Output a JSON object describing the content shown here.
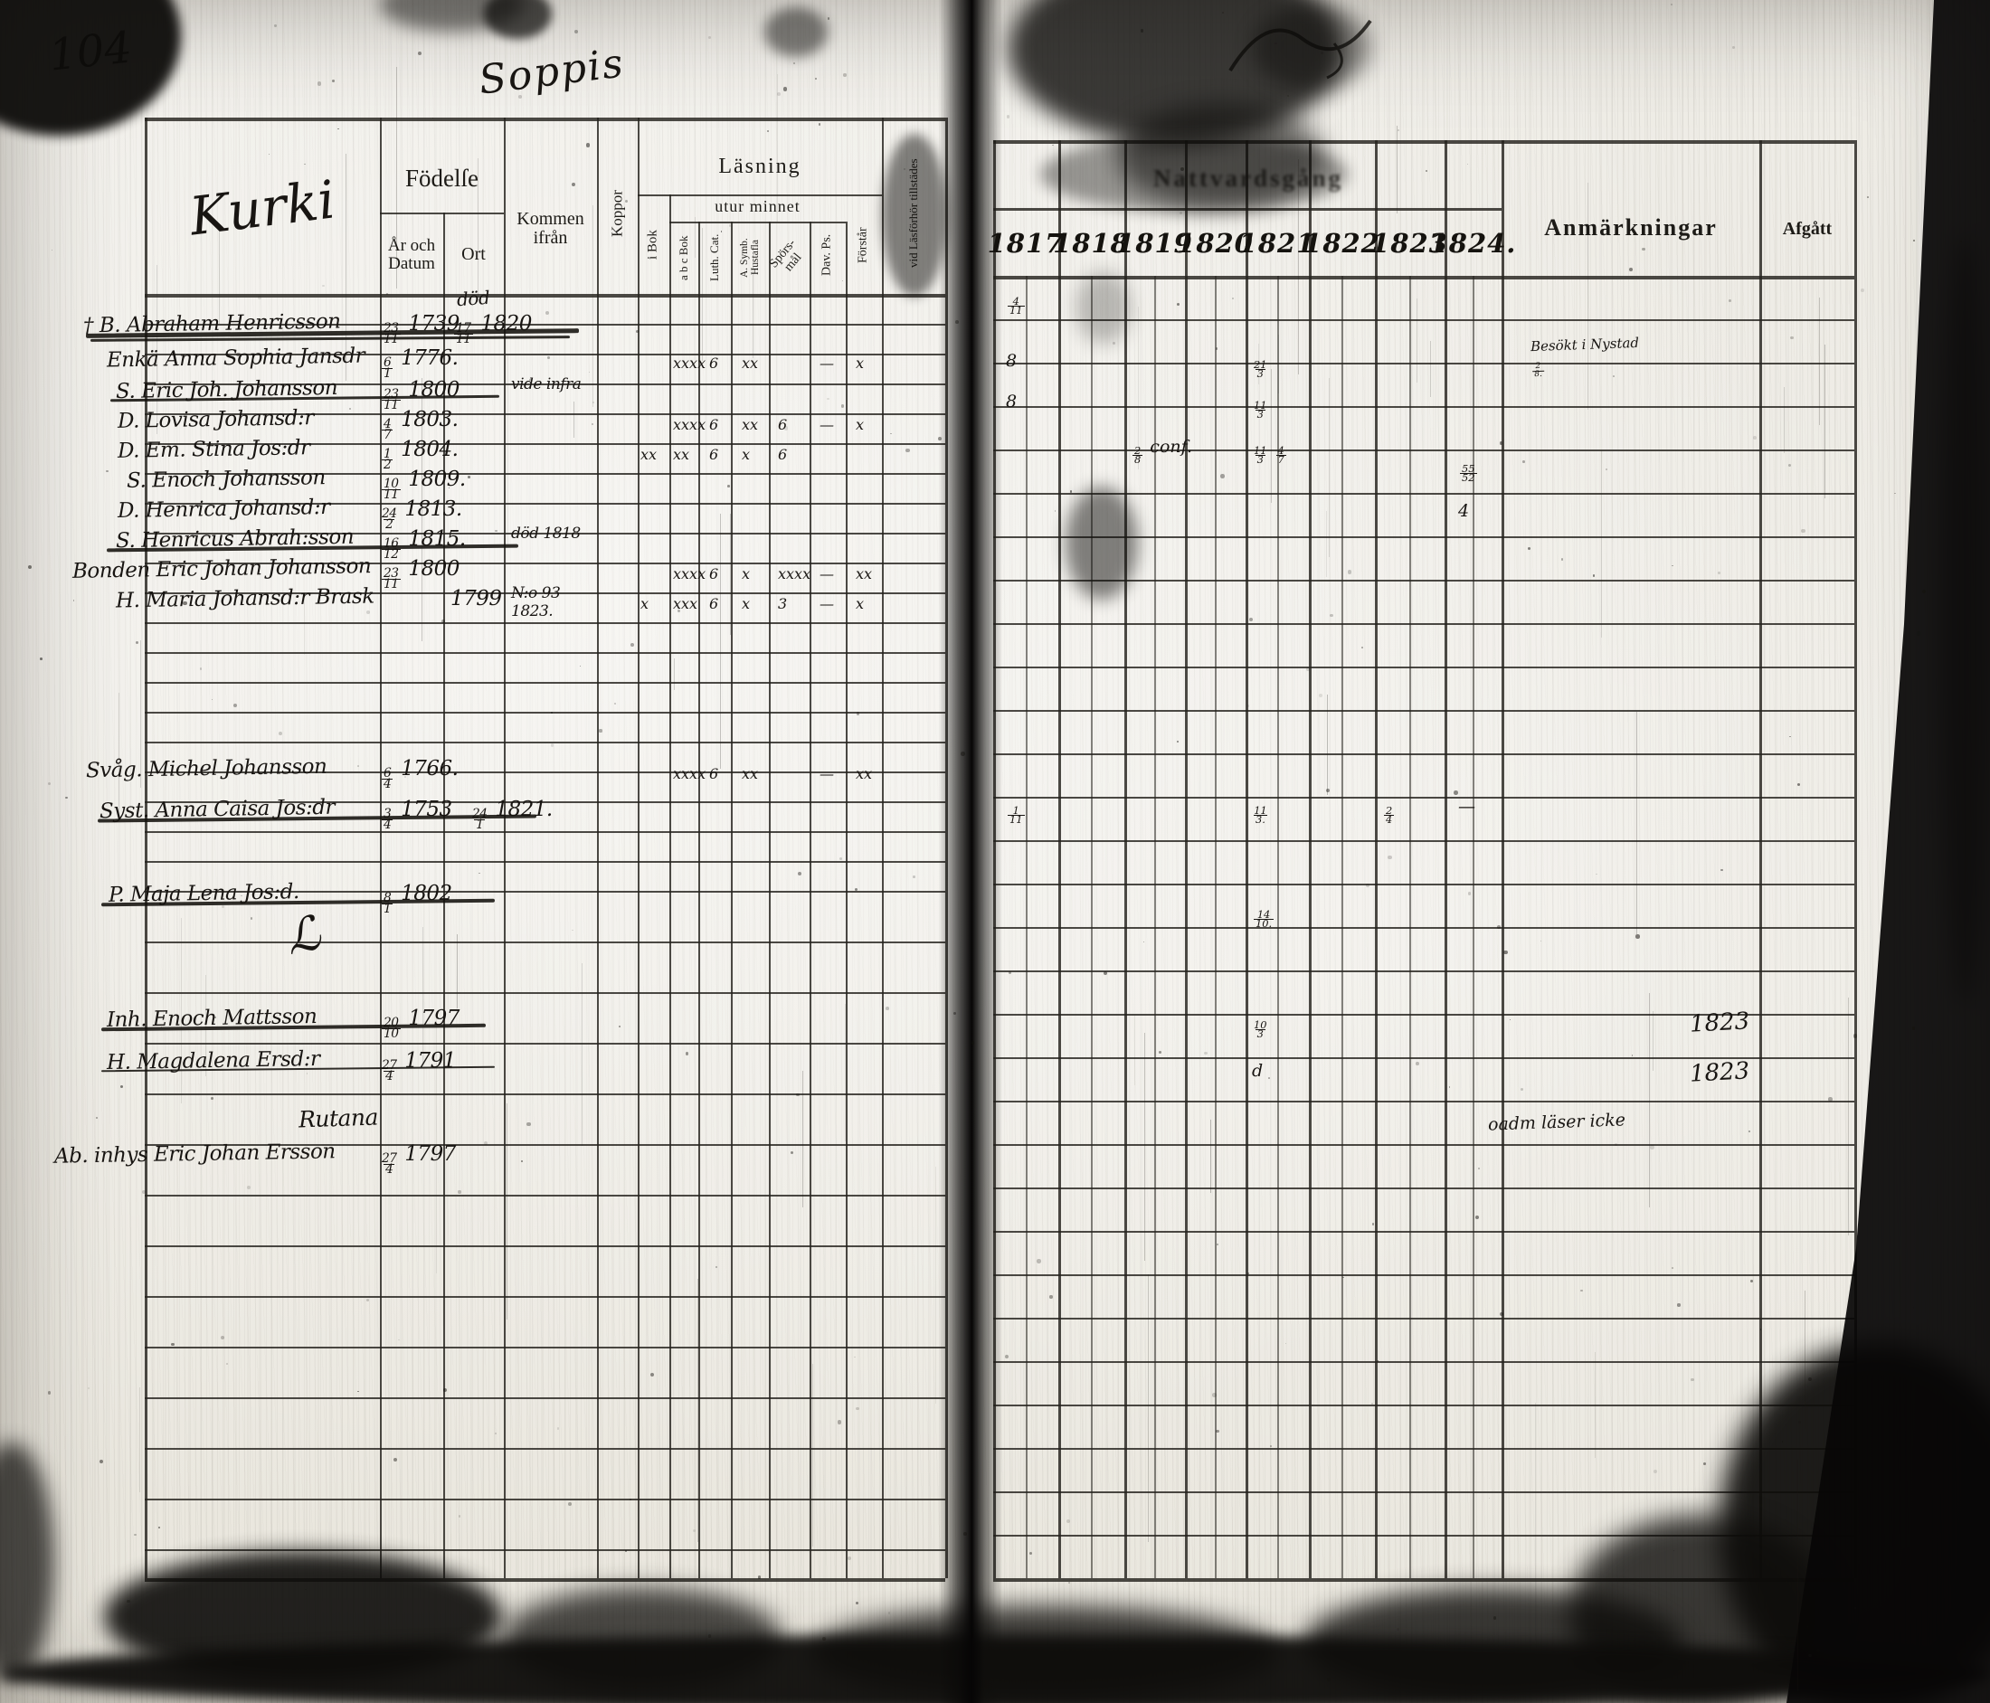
{
  "page": {
    "number": "104",
    "top_note": "Soppis",
    "village": "Kurki"
  },
  "left_table": {
    "headers": {
      "fodelse": "Födelſe",
      "ar_och_datum": "År och Datum",
      "ort": "Ort",
      "kommen_ifran": "Kommen ifrån",
      "koppor": "Koppor",
      "lasning": "Läsning",
      "utur_minnet": "utur minnet",
      "i_bok": "i Bok",
      "abc_bok": "a b c Bok",
      "luth_cat": "Luth. Cat.",
      "symb": "A. Symb. Hustafla",
      "sporsmal": "Spörs-mål",
      "dav_ps": "Dav. Ps.",
      "forstar": "Förstår",
      "tillstades": "vid Läsförhör tillstädes"
    }
  },
  "right_table": {
    "title": "Nattvardsgång",
    "years": [
      "1817",
      "1818",
      "1819",
      "1820",
      "1821",
      "1822",
      "1823",
      "1824."
    ],
    "anmarkningar": "Anmärkningar",
    "afgatt": "Afgått"
  },
  "entries": [
    {
      "name": "† B. Abraham Henricsson",
      "birth": "23/11 1739",
      "death": "17/11 1820",
      "ort_note": "död",
      "struck": true,
      "communion": {
        "1817": "4/11"
      }
    },
    {
      "name": "Enkä Anna Sophia Jansdr",
      "birth": "6/1 1776.",
      "reading": [
        [
          "abc",
          "xxxx"
        ],
        [
          "luth",
          "6"
        ],
        [
          "symb",
          "xx"
        ],
        [
          "dav",
          "—"
        ],
        [
          "forstar",
          "x"
        ]
      ],
      "communion": {
        "1817": "8",
        "1821": "21/3"
      },
      "remark": [
        "Besökt i Nystad",
        "2/8."
      ]
    },
    {
      "name": "S. Eric Joh. Johansson",
      "birth": "23/11 1800",
      "kommen": [
        "vide infra"
      ],
      "struck": true,
      "communion": {
        "1817": "8",
        "1821": "11/3"
      }
    },
    {
      "name": "D. Lovisa Johansd:r",
      "birth": "4/7 1803.",
      "reading": [
        [
          "abc",
          "xxxx"
        ],
        [
          "luth",
          "6"
        ],
        [
          "symb",
          "xx"
        ],
        [
          "spors",
          "6"
        ],
        [
          "dav",
          "—"
        ],
        [
          "forstar",
          "x"
        ]
      ],
      "communion": {
        "1819": "2/8 conf.",
        "1821": "11/3 4/7"
      }
    },
    {
      "name": "D. Em. Stina Jos:dr",
      "birth": "1/2 1804.",
      "reading": [
        [
          "ibok",
          "xx"
        ],
        [
          "abc",
          "xx"
        ],
        [
          "luth",
          "6"
        ],
        [
          "symb",
          "x"
        ],
        [
          "spors",
          "6"
        ]
      ]
    },
    {
      "name": "S. Enoch Johansson",
      "birth": "10/11 1809."
    },
    {
      "name": "D. Henrica Johansd:r",
      "birth": "24/2 1813."
    },
    {
      "name": "S. Henricus Abrah:sson",
      "birth": "16/12 1815.",
      "kommen": [
        "död 1818"
      ],
      "struck": true
    },
    {
      "name": "Bonden Eric Johan Johansson",
      "birth": "23/11 1800",
      "reading": [
        [
          "abc",
          "xxxx"
        ],
        [
          "luth",
          "6"
        ],
        [
          "symb",
          "x"
        ],
        [
          "spors",
          "xxxx"
        ],
        [
          "dav",
          "—"
        ],
        [
          "forstar",
          "xx"
        ]
      ],
      "communion": {
        "1824": "55/52"
      }
    },
    {
      "name": "H. Maria Johansd:r Brask",
      "birth": "1799",
      "kommen": [
        "N:o 93",
        "1823."
      ],
      "reading": [
        [
          "ibok",
          "x"
        ],
        [
          "abc",
          "xxx"
        ],
        [
          "luth",
          "6"
        ],
        [
          "symb",
          "x"
        ],
        [
          "spors",
          "3"
        ],
        [
          "dav",
          "—"
        ],
        [
          "forstar",
          "x"
        ]
      ],
      "communion": {
        "1824": "4"
      }
    },
    {
      "name": "Svåg. Michel Johansson",
      "birth": "6/4 1766.",
      "reading": [
        [
          "abc",
          "xxxx"
        ],
        [
          "luth",
          "6"
        ],
        [
          "symb",
          "xx"
        ],
        [
          "dav",
          "—"
        ],
        [
          "forstar",
          "xx"
        ]
      ],
      "communion": {
        "1817": "1/11",
        "1821": "11/3.",
        "1823": "2/4",
        "1824": "—"
      }
    },
    {
      "name": "Syst. Anna Caisa Jos:dr",
      "birth": "3/4 1753",
      "death": "24/1 1821.",
      "struck": true
    },
    {
      "name": "P. Maja Lena Jos:d.",
      "birth": "8/1 1802",
      "struck": true,
      "communion": {
        "1821": "14/10."
      }
    },
    {
      "name": "Inh. Enoch Mattsson",
      "birth": "20/10 1797",
      "struck": true,
      "communion": {
        "1821": "10/3"
      },
      "afgatt": "1823"
    },
    {
      "name": "H. Magdalena Ersd:r",
      "birth": "27/4 1791",
      "struck": true,
      "communion": {
        "1821": "d"
      },
      "afgatt": "1823"
    },
    {
      "group_heading": "Rutana"
    },
    {
      "name": "Ab. inhys Eric Johan Ersson",
      "birth": "27/4 1797",
      "remark": [
        "oadm läser icke"
      ]
    }
  ]
}
